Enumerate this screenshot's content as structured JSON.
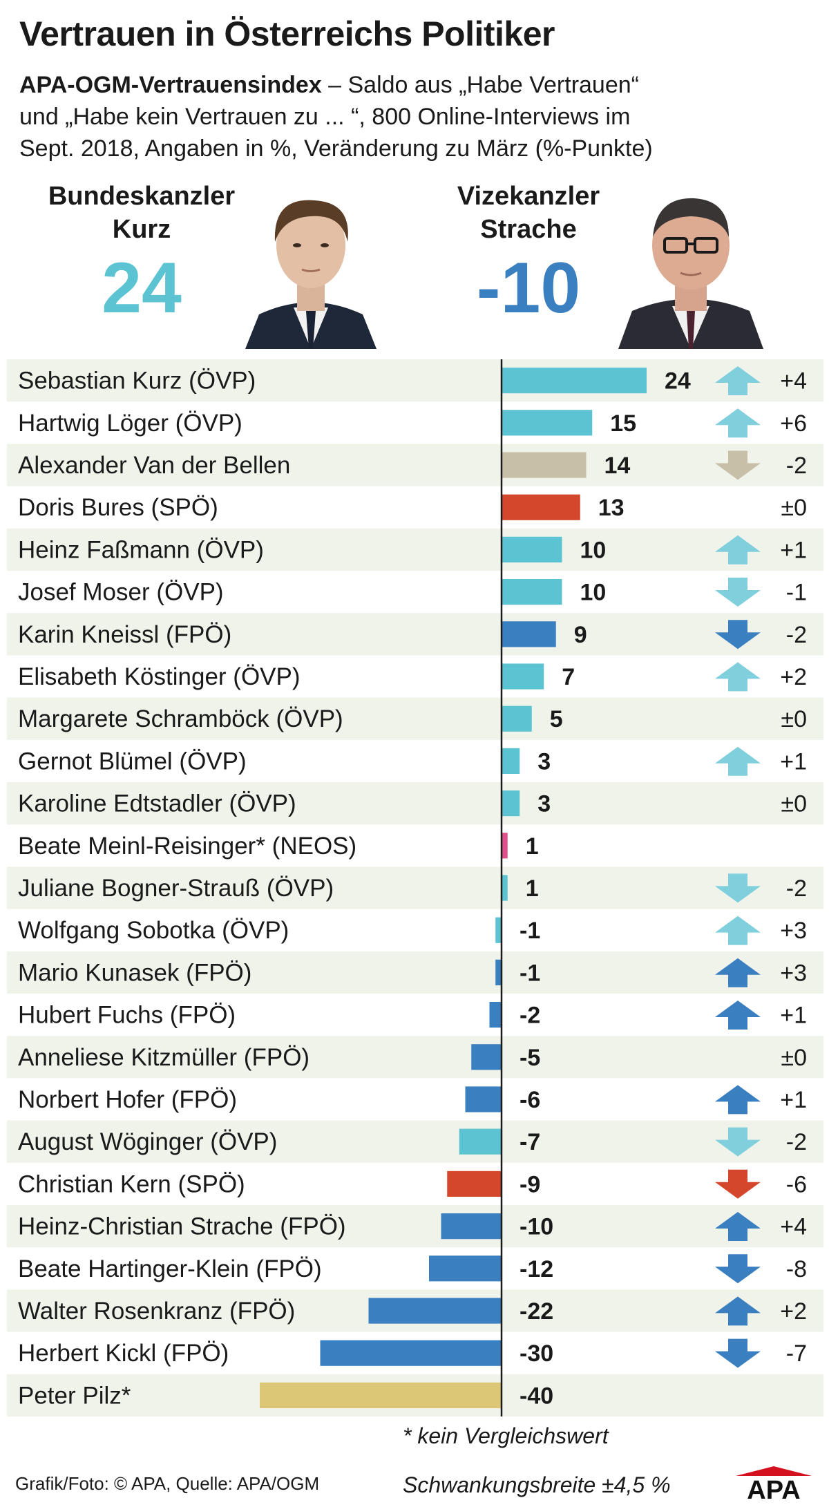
{
  "title": "Vertrauen in Österreichs Politiker",
  "subtitle": {
    "lead": "APA-OGM-Vertrauensindex",
    "rest_line1": " – Saldo aus „Habe Vertrauen“",
    "line2": "und „Habe kein Vertrauen zu ... “, 800 Online-Interviews im",
    "line3": "Sept. 2018, Angaben in %, Veränderung zu März (%-Punkte)"
  },
  "hero_left": {
    "role_line1": "Bundeskanzler",
    "role_line2": "Kurz",
    "value": "24",
    "color": "#5bc3d1"
  },
  "hero_right": {
    "role_line1": "Vizekanzler",
    "role_line2": "Strache",
    "value": "-10",
    "color": "#3a7fc0"
  },
  "colors": {
    "ovp": "#5bc3d1",
    "fpo": "#3a7fc0",
    "spo": "#d4472c",
    "neos": "#e0508a",
    "independent": "#c8bfa8",
    "pilz": "#dcc777",
    "row_shade": "#eff3ea",
    "arrow_ovp": "#7fcfdc",
    "arrow_fpo": "#3a7fc0",
    "arrow_spo": "#d4472c",
    "arrow_independent": "#c8bfa8"
  },
  "chart_data": {
    "type": "bar",
    "orientation": "horizontal",
    "title": "Vertrauen in Österreichs Politiker",
    "xlim": [
      -40,
      24
    ],
    "grid": false,
    "rows": [
      {
        "name": "Sebastian Kurz (ÖVP)",
        "value": 24,
        "change": "+4",
        "direction": "up",
        "party": "ovp"
      },
      {
        "name": "Hartwig Löger (ÖVP)",
        "value": 15,
        "change": "+6",
        "direction": "up",
        "party": "ovp"
      },
      {
        "name": "Alexander Van der Bellen",
        "value": 14,
        "change": "-2",
        "direction": "down",
        "party": "independent"
      },
      {
        "name": "Doris Bures (SPÖ)",
        "value": 13,
        "change": "±0",
        "direction": "none",
        "party": "spo"
      },
      {
        "name": "Heinz Faßmann (ÖVP)",
        "value": 10,
        "change": "+1",
        "direction": "up",
        "party": "ovp"
      },
      {
        "name": "Josef Moser (ÖVP)",
        "value": 10,
        "change": "-1",
        "direction": "down",
        "party": "ovp"
      },
      {
        "name": "Karin Kneissl (FPÖ)",
        "value": 9,
        "change": "-2",
        "direction": "down",
        "party": "fpo"
      },
      {
        "name": "Elisabeth Köstinger (ÖVP)",
        "value": 7,
        "change": "+2",
        "direction": "up",
        "party": "ovp"
      },
      {
        "name": "Margarete Schramböck (ÖVP)",
        "value": 5,
        "change": "±0",
        "direction": "none",
        "party": "ovp"
      },
      {
        "name": "Gernot Blümel (ÖVP)",
        "value": 3,
        "change": "+1",
        "direction": "up",
        "party": "ovp"
      },
      {
        "name": "Karoline Edtstadler (ÖVP)",
        "value": 3,
        "change": "±0",
        "direction": "none",
        "party": "ovp"
      },
      {
        "name": "Beate Meinl-Reisinger* (NEOS)",
        "value": 1,
        "change": "",
        "direction": "none",
        "party": "neos"
      },
      {
        "name": "Juliane Bogner-Strauß (ÖVP)",
        "value": 1,
        "change": "-2",
        "direction": "down",
        "party": "ovp"
      },
      {
        "name": "Wolfgang Sobotka (ÖVP)",
        "value": -1,
        "change": "+3",
        "direction": "up",
        "party": "ovp"
      },
      {
        "name": "Mario Kunasek (FPÖ)",
        "value": -1,
        "change": "+3",
        "direction": "up",
        "party": "fpo"
      },
      {
        "name": "Hubert Fuchs (FPÖ)",
        "value": -2,
        "change": "+1",
        "direction": "up",
        "party": "fpo"
      },
      {
        "name": "Anneliese Kitzmüller (FPÖ)",
        "value": -5,
        "change": "±0",
        "direction": "none",
        "party": "fpo"
      },
      {
        "name": "Norbert Hofer (FPÖ)",
        "value": -6,
        "change": "+1",
        "direction": "up",
        "party": "fpo"
      },
      {
        "name": "August Wöginger (ÖVP)",
        "value": -7,
        "change": "-2",
        "direction": "down",
        "party": "ovp"
      },
      {
        "name": "Christian Kern (SPÖ)",
        "value": -9,
        "change": "-6",
        "direction": "down",
        "party": "spo"
      },
      {
        "name": "Heinz-Christian Strache (FPÖ)",
        "value": -10,
        "change": "+4",
        "direction": "up",
        "party": "fpo"
      },
      {
        "name": "Beate Hartinger-Klein (FPÖ)",
        "value": -12,
        "change": "-8",
        "direction": "down",
        "party": "fpo"
      },
      {
        "name": "Walter Rosenkranz (FPÖ)",
        "value": -22,
        "change": "+2",
        "direction": "up",
        "party": "fpo"
      },
      {
        "name": "Herbert Kickl (FPÖ)",
        "value": -30,
        "change": "-7",
        "direction": "down",
        "party": "fpo"
      },
      {
        "name": "Peter Pilz*",
        "value": -40,
        "change": "",
        "direction": "none",
        "party": "pilz"
      }
    ]
  },
  "footnote": "* kein Vergleichswert",
  "margin_of_error": "Schwankungsbreite ±4,5 %",
  "credit": "Grafik/Foto: © APA, Quelle: APA/OGM",
  "logo_text": "APA"
}
